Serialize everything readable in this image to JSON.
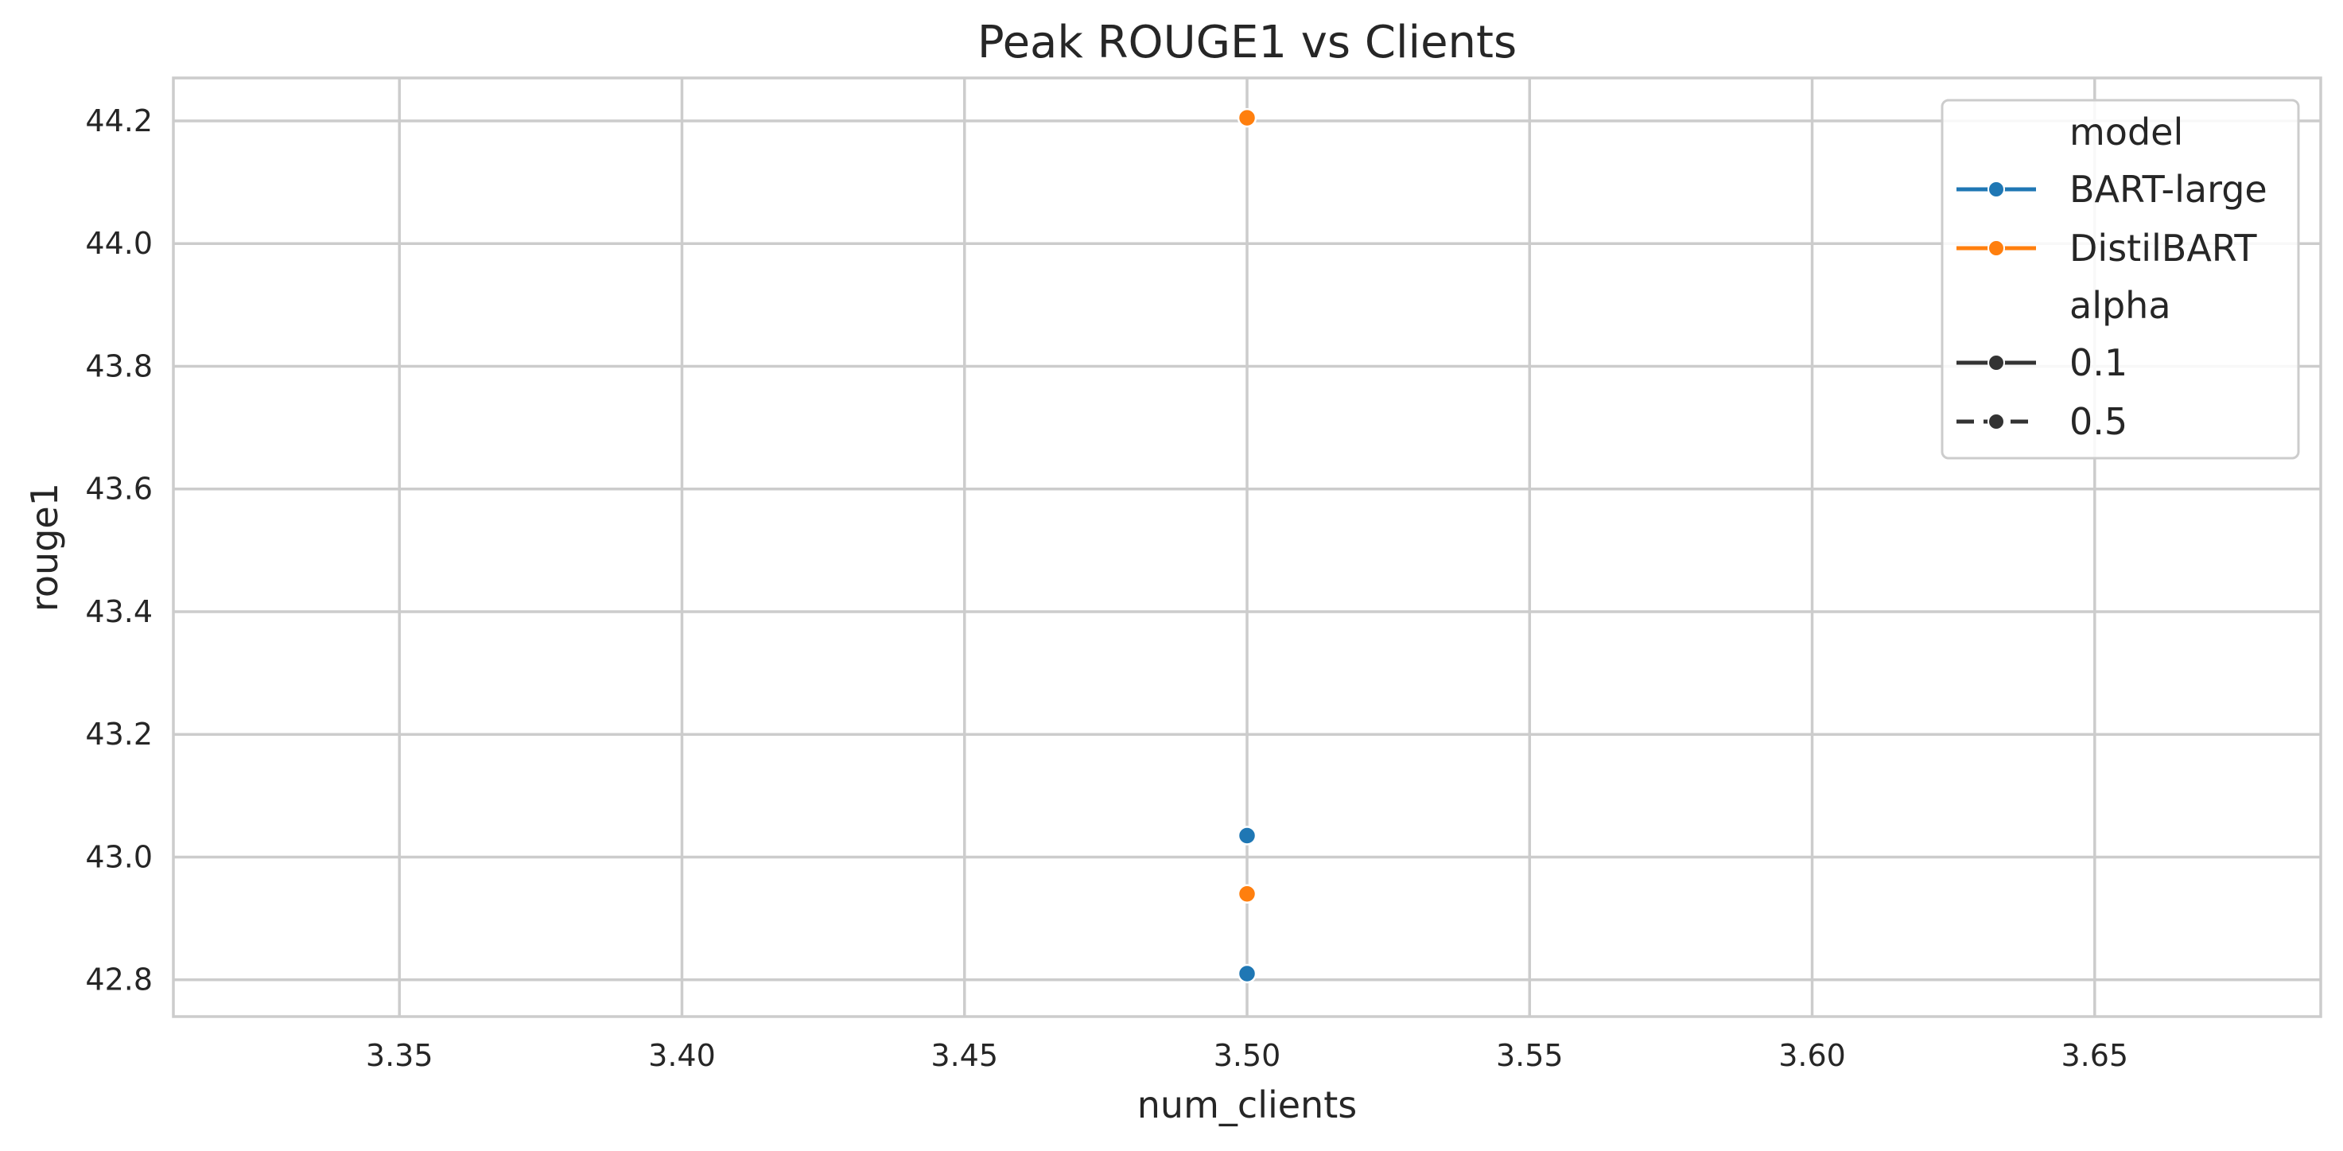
{
  "chart_data": {
    "type": "scatter",
    "title": "Peak ROUGE1 vs Clients",
    "xlabel": "num_clients",
    "ylabel": "rouge1",
    "xlim": [
      3.31,
      3.69
    ],
    "ylim": [
      42.74,
      44.27
    ],
    "x_ticks": [
      "3.35",
      "3.40",
      "3.45",
      "3.50",
      "3.55",
      "3.60",
      "3.65"
    ],
    "y_ticks": [
      "42.8",
      "43.0",
      "43.2",
      "43.4",
      "43.6",
      "43.8",
      "44.0",
      "44.2"
    ],
    "grid": true,
    "legend_position": "top-right",
    "series": [
      {
        "model": "BART-large",
        "alpha": "0.1",
        "color": "#1f77b4",
        "points": [
          {
            "x": 3.5,
            "y": 43.035
          }
        ]
      },
      {
        "model": "BART-large",
        "alpha": "0.5",
        "color": "#1f77b4",
        "points": [
          {
            "x": 3.5,
            "y": 42.81
          }
        ]
      },
      {
        "model": "DistilBART",
        "alpha": "0.1",
        "color": "#ff7f0e",
        "points": [
          {
            "x": 3.5,
            "y": 44.205
          }
        ]
      },
      {
        "model": "DistilBART",
        "alpha": "0.5",
        "color": "#ff7f0e",
        "points": [
          {
            "x": 3.5,
            "y": 42.94
          }
        ]
      }
    ],
    "legend": {
      "hue_title": "model",
      "hue_entries": [
        {
          "label": "BART-large",
          "color": "#1f77b4"
        },
        {
          "label": "DistilBART",
          "color": "#ff7f0e"
        }
      ],
      "style_title": "alpha",
      "style_entries": [
        {
          "label": "0.1",
          "dash": "solid"
        },
        {
          "label": "0.5",
          "dash": "dashed"
        }
      ]
    }
  }
}
